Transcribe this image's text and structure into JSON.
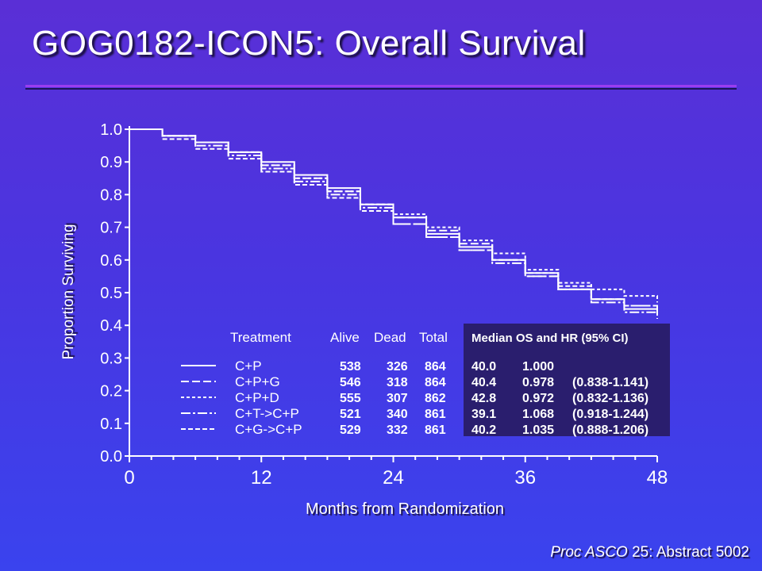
{
  "title": "GOG0182-ICON5:  Overall Survival",
  "citation": {
    "journal": "Proc ASCO",
    "rest": " 25: Abstract 5002"
  },
  "chart_data": {
    "type": "line",
    "title": "",
    "xlabel": "Months from Randomization",
    "ylabel": "Proportion Surviving",
    "xlim": [
      0,
      48
    ],
    "ylim": [
      0,
      1.0
    ],
    "x_ticks": [
      "0",
      "12",
      "24",
      "36",
      "48"
    ],
    "y_ticks": [
      "0.0",
      "0.1",
      "0.2",
      "0.3",
      "0.4",
      "0.5",
      "0.6",
      "0.7",
      "0.8",
      "0.9",
      "1.0"
    ],
    "series": [
      {
        "name": "C+P",
        "x": [
          0,
          3,
          6,
          9,
          12,
          15,
          18,
          21,
          24,
          27,
          30,
          33,
          36,
          39,
          42,
          45,
          48
        ],
        "y": [
          1.0,
          0.98,
          0.96,
          0.93,
          0.9,
          0.86,
          0.82,
          0.77,
          0.73,
          0.68,
          0.64,
          0.6,
          0.56,
          0.51,
          0.48,
          0.45,
          0.43
        ]
      },
      {
        "name": "C+P+G",
        "x": [
          0,
          3,
          6,
          9,
          12,
          15,
          18,
          21,
          24,
          27,
          30,
          33,
          36,
          39,
          42,
          45,
          48
        ],
        "y": [
          1.0,
          0.98,
          0.96,
          0.93,
          0.89,
          0.85,
          0.81,
          0.77,
          0.73,
          0.69,
          0.65,
          0.6,
          0.55,
          0.51,
          0.48,
          0.46,
          0.44
        ]
      },
      {
        "name": "C+P+D",
        "x": [
          0,
          3,
          6,
          9,
          12,
          15,
          18,
          21,
          24,
          27,
          30,
          33,
          36,
          39,
          42,
          45,
          48
        ],
        "y": [
          1.0,
          0.98,
          0.96,
          0.93,
          0.89,
          0.85,
          0.81,
          0.77,
          0.74,
          0.7,
          0.66,
          0.62,
          0.57,
          0.53,
          0.51,
          0.49,
          0.47
        ]
      },
      {
        "name": "C+T->C+P",
        "x": [
          0,
          3,
          6,
          9,
          12,
          15,
          18,
          21,
          24,
          27,
          30,
          33,
          36,
          39,
          42,
          45,
          48
        ],
        "y": [
          1.0,
          0.98,
          0.95,
          0.92,
          0.88,
          0.84,
          0.8,
          0.76,
          0.71,
          0.67,
          0.63,
          0.59,
          0.55,
          0.51,
          0.47,
          0.44,
          0.42
        ]
      },
      {
        "name": "C+G->C+P",
        "x": [
          0,
          3,
          6,
          9,
          12,
          15,
          18,
          21,
          24,
          27,
          30,
          33,
          36,
          39,
          42,
          45,
          48
        ],
        "y": [
          1.0,
          0.97,
          0.94,
          0.91,
          0.87,
          0.83,
          0.79,
          0.75,
          0.71,
          0.67,
          0.63,
          0.6,
          0.56,
          0.52,
          0.48,
          0.46,
          0.44
        ]
      }
    ]
  },
  "legend_table": {
    "headers": {
      "treatment": "Treatment",
      "alive": "Alive",
      "dead": "Dead",
      "total": "Total"
    },
    "rows": [
      {
        "treatment": "C+P",
        "alive": "538",
        "dead": "326",
        "total": "864"
      },
      {
        "treatment": "C+P+G",
        "alive": "546",
        "dead": "318",
        "total": "864"
      },
      {
        "treatment": "C+P+D",
        "alive": "555",
        "dead": "307",
        "total": "862"
      },
      {
        "treatment": "C+T->C+P",
        "alive": "521",
        "dead": "340",
        "total": "861"
      },
      {
        "treatment": "C+G->C+P",
        "alive": "529",
        "dead": "332",
        "total": "861"
      }
    ]
  },
  "hr_table": {
    "header": "Median OS and HR (95% CI)",
    "rows": [
      {
        "median": "40.0",
        "hr": "1.000",
        "ci": ""
      },
      {
        "median": "40.4",
        "hr": "0.978",
        "ci": "(0.838-1.141)"
      },
      {
        "median": "42.8",
        "hr": "0.972",
        "ci": "(0.832-1.136)"
      },
      {
        "median": "39.1",
        "hr": "1.068",
        "ci": "(0.918-1.244)"
      },
      {
        "median": "40.2",
        "hr": "1.035",
        "ci": "(0.888-1.206)"
      }
    ]
  }
}
